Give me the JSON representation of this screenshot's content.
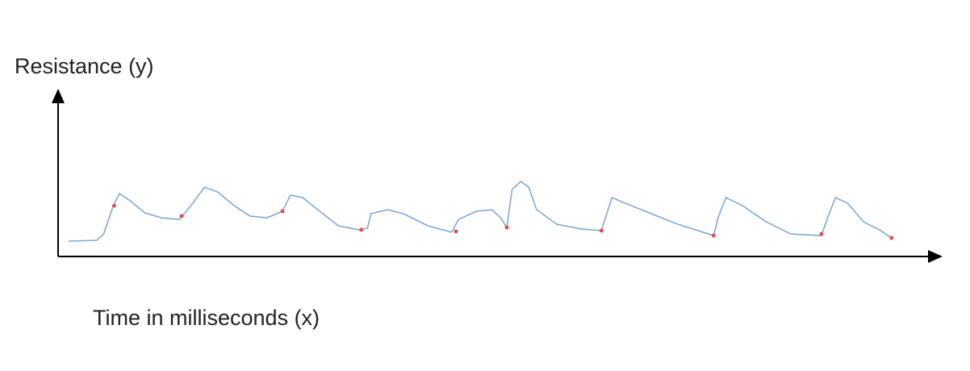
{
  "chart_data": {
    "type": "line",
    "y_label": "Resistance (y)",
    "x_label": "Time in milliseconds (x)",
    "xlim": [
      0,
      100
    ],
    "ylim": [
      0,
      100
    ],
    "series": [
      {
        "color": "#7fa8d8",
        "mode": "line",
        "x": [
          1.2,
          4.4,
          5.2,
          6.3,
          7.0,
          8.1,
          9.9,
          11.8,
          13.8,
          14.4,
          15.5,
          16.7,
          18.2,
          20.1,
          21.9,
          23.8,
          25.6,
          26.5,
          27.9,
          30.2,
          32.0,
          34.3,
          35.3,
          35.7,
          37.6,
          39.4,
          42.2,
          44.9,
          45.7,
          47.7,
          49.5,
          50.5,
          51.2,
          51.8,
          52.8,
          53.7,
          54.6,
          56.9,
          59.7,
          62.0,
          62.6,
          63.2,
          64.3,
          67.0,
          70.7,
          74.8,
          75.3,
          76.2,
          78.1,
          80.8,
          83.6,
          87.1,
          87.8,
          88.7,
          90.1,
          91.9,
          93.7,
          95.1
        ],
        "values": [
          9.6,
          10.1,
          14.1,
          31.8,
          39.4,
          35.4,
          27.3,
          24.2,
          23.2,
          26.8,
          34.3,
          43.4,
          40.4,
          31.8,
          25.3,
          24.2,
          28.3,
          38.4,
          36.9,
          26.8,
          19.2,
          16.7,
          17.7,
          26.8,
          29.3,
          26.8,
          19.2,
          15.2,
          23.2,
          28.3,
          29.3,
          24.2,
          18.2,
          41.9,
          47.0,
          43.4,
          29.3,
          20.2,
          17.2,
          16.2,
          26.8,
          36.9,
          34.3,
          28.3,
          20.2,
          13.1,
          24.2,
          36.9,
          31.8,
          21.7,
          14.1,
          13.1,
          24.2,
          36.9,
          33.3,
          21.7,
          16.7,
          11.6
        ]
      },
      {
        "color": "#e05050",
        "mode": "markers",
        "x": [
          6.4,
          14.1,
          25.6,
          34.6,
          45.4,
          51.2,
          62.0,
          74.8,
          87.1,
          95.1
        ],
        "values": [
          31.8,
          25.3,
          28.3,
          16.7,
          15.7,
          18.2,
          16.2,
          13.1,
          14.1,
          11.6
        ]
      }
    ]
  }
}
